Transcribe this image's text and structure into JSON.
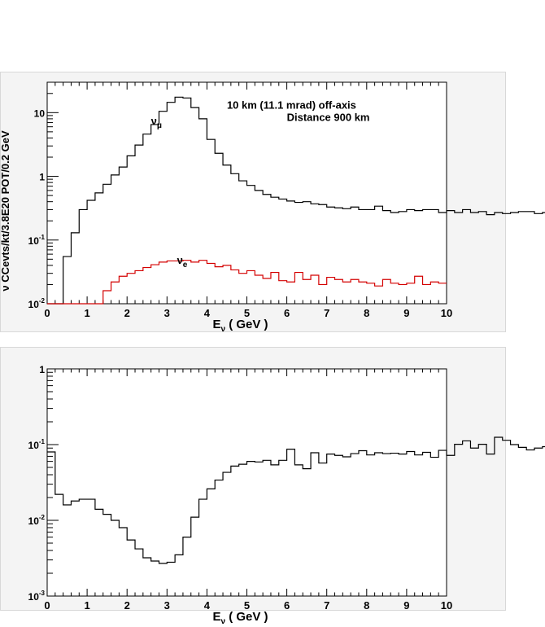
{
  "chart_data": [
    {
      "type": "line",
      "step": true,
      "scale": "log",
      "ylabel": "ν CCevts/kt/3.8E20 POT/0.2 GeV",
      "xlabel_main": "E",
      "xlabel_sub": "ν",
      "xlabel_unit": " ( GeV )",
      "xlim": [
        0,
        10
      ],
      "ylim": [
        0.01,
        30
      ],
      "x_ticks": [
        "0",
        "1",
        "2",
        "3",
        "4",
        "5",
        "6",
        "7",
        "8",
        "9",
        "10"
      ],
      "y_ticks": [
        {
          "base": "10",
          "exp": "-2",
          "value": 0.01
        },
        {
          "base": "10",
          "exp": "-1",
          "value": 0.1
        },
        {
          "base": "1",
          "exp": "",
          "value": 1
        },
        {
          "base": "10",
          "exp": "",
          "value": 10
        }
      ],
      "annotation_line1": "10 km (11.1 mrad) off-axis",
      "annotation_line2": "Distance 900 km",
      "series": [
        {
          "name": "ν",
          "name_sub": "μ",
          "label_x": 2.6,
          "label_y": 6.5,
          "color": "#000000",
          "bin_width": 0.2,
          "values": [
            0.01,
            0.01,
            0.055,
            0.13,
            0.3,
            0.42,
            0.55,
            0.75,
            1.05,
            1.4,
            2.1,
            3.1,
            4.6,
            6.5,
            10.5,
            14.5,
            17.5,
            17,
            12,
            8,
            3.8,
            2.3,
            1.5,
            1.1,
            0.85,
            0.72,
            0.6,
            0.52,
            0.47,
            0.44,
            0.41,
            0.39,
            0.4,
            0.37,
            0.36,
            0.33,
            0.32,
            0.31,
            0.33,
            0.3,
            0.3,
            0.34,
            0.29,
            0.27,
            0.28,
            0.3,
            0.29,
            0.3,
            0.3,
            0.27,
            0.29,
            0.27,
            0.3,
            0.27,
            0.28,
            0.25,
            0.27,
            0.26,
            0.27,
            0.28,
            0.28,
            0.26,
            0.27,
            0.25,
            0.27,
            0.26,
            0.26,
            0.25,
            0.27,
            0.28,
            0.27,
            0.26,
            0.25,
            0.24,
            0.25,
            0.23,
            0.25,
            0.27,
            0.28,
            0.25,
            0.27,
            0.24,
            0.26,
            0.23,
            0.25,
            0.26,
            0.25,
            0.26,
            0.26,
            0.25,
            0.27,
            0.26,
            0.25,
            0.26,
            0.28,
            0.27,
            0.26,
            0.25,
            0.25,
            0.28
          ]
        },
        {
          "name": "ν",
          "name_sub": "e",
          "label_x": 3.25,
          "label_y": 0.042,
          "color": "#d40000",
          "bin_width": 0.2,
          "values": [
            0,
            0,
            0,
            0,
            0,
            0,
            0.01,
            0.016,
            0.022,
            0.027,
            0.03,
            0.033,
            0.037,
            0.041,
            0.045,
            0.047,
            0.047,
            0.048,
            0.045,
            0.048,
            0.043,
            0.038,
            0.04,
            0.034,
            0.03,
            0.033,
            0.028,
            0.025,
            0.031,
            0.023,
            0.022,
            0.031,
            0.024,
            0.028,
            0.02,
            0.026,
            0.024,
            0.022,
            0.024,
            0.022,
            0.021,
            0.019,
            0.024,
            0.021,
            0.02,
            0.021,
            0.027,
            0.02,
            0.022,
            0.021
          ]
        }
      ]
    },
    {
      "type": "line",
      "step": true,
      "scale": "log",
      "ylabel": "",
      "xlabel_main": "E",
      "xlabel_sub": "ν",
      "xlabel_unit": " ( GeV )",
      "xlim": [
        0,
        10
      ],
      "ylim": [
        0.001,
        1
      ],
      "x_ticks": [
        "0",
        "1",
        "2",
        "3",
        "4",
        "5",
        "6",
        "7",
        "8",
        "9",
        "10"
      ],
      "y_ticks": [
        {
          "base": "10",
          "exp": "-3",
          "value": 0.001
        },
        {
          "base": "10",
          "exp": "-2",
          "value": 0.01
        },
        {
          "base": "10",
          "exp": "-1",
          "value": 0.1
        },
        {
          "base": "1",
          "exp": "",
          "value": 1
        }
      ],
      "series": [
        {
          "name": "",
          "color": "#000000",
          "bin_width": 0.2,
          "values": [
            0.08,
            0.022,
            0.016,
            0.018,
            0.019,
            0.019,
            0.014,
            0.012,
            0.01,
            0.008,
            0.0055,
            0.0042,
            0.0032,
            0.0029,
            0.0027,
            0.0028,
            0.0035,
            0.006,
            0.011,
            0.019,
            0.026,
            0.034,
            0.043,
            0.052,
            0.055,
            0.06,
            0.059,
            0.062,
            0.054,
            0.062,
            0.087,
            0.054,
            0.048,
            0.078,
            0.057,
            0.075,
            0.072,
            0.069,
            0.076,
            0.083,
            0.073,
            0.078,
            0.076,
            0.077,
            0.075,
            0.081,
            0.073,
            0.079,
            0.068,
            0.084,
            0.072,
            0.101,
            0.112,
            0.09,
            0.101,
            0.075,
            0.125,
            0.114,
            0.1,
            0.092,
            0.085,
            0.09,
            0.094,
            0.104,
            0.095,
            0.086,
            0.09,
            0.086,
            0.09,
            0.086,
            0.09,
            0.086,
            0.088,
            0.09,
            0.092,
            0.087,
            0.09,
            0.086,
            0.1,
            0.088,
            0.087,
            0.085,
            0.089,
            0.092,
            0.085,
            0.087,
            0.088,
            0.086,
            0.09,
            0.086,
            0.09,
            0.088,
            0.086,
            0.09,
            0.087,
            0.09,
            0.086,
            0.088,
            0.09,
            0.1
          ]
        }
      ]
    }
  ]
}
